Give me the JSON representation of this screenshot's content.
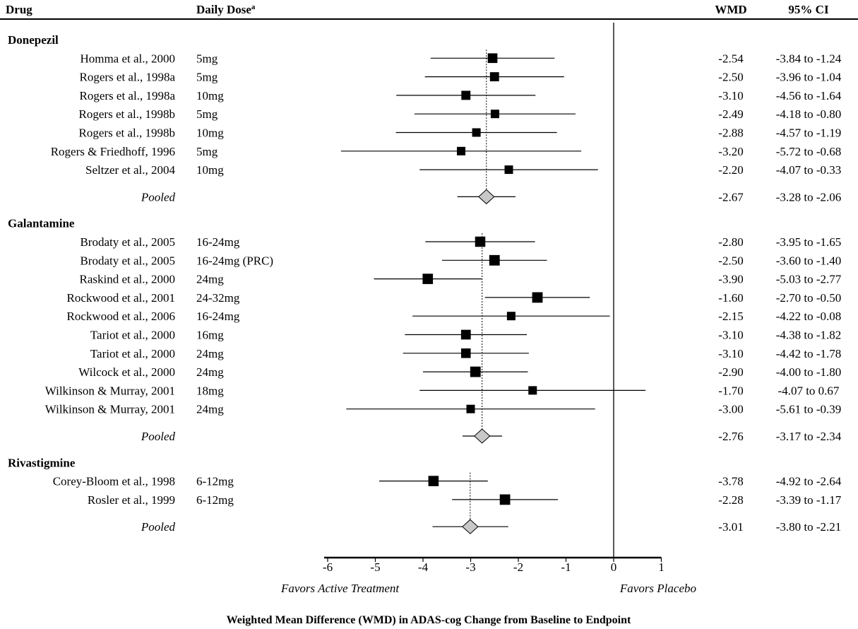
{
  "chart_data": {
    "type": "forest",
    "headers": {
      "drug": "Drug",
      "dose": "Daily Dose",
      "dose_sup": "a",
      "wmd": "WMD",
      "ci": "95% CI"
    },
    "xlim": [
      -6,
      1
    ],
    "ticks": [
      "-6",
      "-5",
      "-4",
      "-3",
      "-2",
      "-1",
      "0",
      "1"
    ],
    "favors_left": "Favors Active Treatment",
    "favors_right": "Favors Placebo",
    "xlabel": "Weighted Mean Difference (WMD) in ADAS-cog Change from Baseline to Endpoint",
    "groups": [
      {
        "name": "Donepezil",
        "studies": [
          {
            "study": "Homma et al., 2000",
            "dose": "5mg",
            "wmd": -2.54,
            "lo": -3.84,
            "hi": -1.24,
            "wmd_text": "-2.54",
            "ci_text": "-3.84 to -1.24"
          },
          {
            "study": "Rogers et al., 1998a",
            "dose": "5mg",
            "wmd": -2.5,
            "lo": -3.96,
            "hi": -1.04,
            "wmd_text": "-2.50",
            "ci_text": "-3.96 to -1.04"
          },
          {
            "study": "Rogers et al., 1998a",
            "dose": "10mg",
            "wmd": -3.1,
            "lo": -4.56,
            "hi": -1.64,
            "wmd_text": "-3.10",
            "ci_text": "-4.56 to -1.64"
          },
          {
            "study": "Rogers et al., 1998b",
            "dose": "5mg",
            "wmd": -2.49,
            "lo": -4.18,
            "hi": -0.8,
            "wmd_text": "-2.49",
            "ci_text": "-4.18 to -0.80"
          },
          {
            "study": "Rogers et al., 1998b",
            "dose": "10mg",
            "wmd": -2.88,
            "lo": -4.57,
            "hi": -1.19,
            "wmd_text": "-2.88",
            "ci_text": "-4.57 to -1.19"
          },
          {
            "study": "Rogers & Friedhoff, 1996",
            "dose": "5mg",
            "wmd": -3.2,
            "lo": -5.72,
            "hi": -0.68,
            "wmd_text": "-3.20",
            "ci_text": "-5.72 to -0.68"
          },
          {
            "study": "Seltzer et al., 2004",
            "dose": "10mg",
            "wmd": -2.2,
            "lo": -4.07,
            "hi": -0.33,
            "wmd_text": "-2.20",
            "ci_text": "-4.07 to -0.33"
          }
        ],
        "pooled": {
          "label": "Pooled",
          "wmd": -2.67,
          "lo": -3.28,
          "hi": -2.06,
          "wmd_text": "-2.67",
          "ci_text": "-3.28 to -2.06"
        }
      },
      {
        "name": "Galantamine",
        "studies": [
          {
            "study": "Brodaty et al., 2005",
            "dose": "16-24mg",
            "wmd": -2.8,
            "lo": -3.95,
            "hi": -1.65,
            "wmd_text": "-2.80",
            "ci_text": "-3.95 to -1.65"
          },
          {
            "study": "Brodaty et al., 2005",
            "dose": "16-24mg (PRC)",
            "wmd": -2.5,
            "lo": -3.6,
            "hi": -1.4,
            "wmd_text": "-2.50",
            "ci_text": "-3.60 to -1.40"
          },
          {
            "study": "Raskind et al., 2000",
            "dose": "24mg",
            "wmd": -3.9,
            "lo": -5.03,
            "hi": -2.77,
            "wmd_text": "-3.90",
            "ci_text": "-5.03 to -2.77"
          },
          {
            "study": "Rockwood et al., 2001",
            "dose": "24-32mg",
            "wmd": -1.6,
            "lo": -2.7,
            "hi": -0.5,
            "wmd_text": "-1.60",
            "ci_text": "-2.70 to -0.50"
          },
          {
            "study": "Rockwood et al., 2006",
            "dose": "16-24mg",
            "wmd": -2.15,
            "lo": -4.22,
            "hi": -0.08,
            "wmd_text": "-2.15",
            "ci_text": "-4.22 to -0.08"
          },
          {
            "study": "Tariot et al., 2000",
            "dose": "16mg",
            "wmd": -3.1,
            "lo": -4.38,
            "hi": -1.82,
            "wmd_text": "-3.10",
            "ci_text": "-4.38 to -1.82"
          },
          {
            "study": "Tariot et al., 2000",
            "dose": "24mg",
            "wmd": -3.1,
            "lo": -4.42,
            "hi": -1.78,
            "wmd_text": "-3.10",
            "ci_text": "-4.42 to -1.78"
          },
          {
            "study": "Wilcock et al., 2000",
            "dose": "24mg",
            "wmd": -2.9,
            "lo": -4.0,
            "hi": -1.8,
            "wmd_text": "-2.90",
            "ci_text": "-4.00 to -1.80"
          },
          {
            "study": "Wilkinson & Murray, 2001",
            "dose": "18mg",
            "wmd": -1.7,
            "lo": -4.07,
            "hi": 0.67,
            "wmd_text": "-1.70",
            "ci_text": "-4.07 to 0.67"
          },
          {
            "study": "Wilkinson & Murray, 2001",
            "dose": "24mg",
            "wmd": -3.0,
            "lo": -5.61,
            "hi": -0.39,
            "wmd_text": "-3.00",
            "ci_text": "-5.61 to -0.39"
          }
        ],
        "pooled": {
          "label": "Pooled",
          "wmd": -2.76,
          "lo": -3.17,
          "hi": -2.34,
          "wmd_text": "-2.76",
          "ci_text": "-3.17 to -2.34"
        }
      },
      {
        "name": "Rivastigmine",
        "studies": [
          {
            "study": "Corey-Bloom et al., 1998",
            "dose": "6-12mg",
            "wmd": -3.78,
            "lo": -4.92,
            "hi": -2.64,
            "wmd_text": "-3.78",
            "ci_text": "-4.92 to -2.64"
          },
          {
            "study": "Rosler et al., 1999",
            "dose": "6-12mg",
            "wmd": -2.28,
            "lo": -3.39,
            "hi": -1.17,
            "wmd_text": "-2.28",
            "ci_text": "-3.39 to -1.17"
          }
        ],
        "pooled": {
          "label": "Pooled",
          "wmd": -3.01,
          "lo": -3.8,
          "hi": -2.21,
          "wmd_text": "-3.01",
          "ci_text": "-3.80 to -2.21"
        }
      }
    ]
  }
}
